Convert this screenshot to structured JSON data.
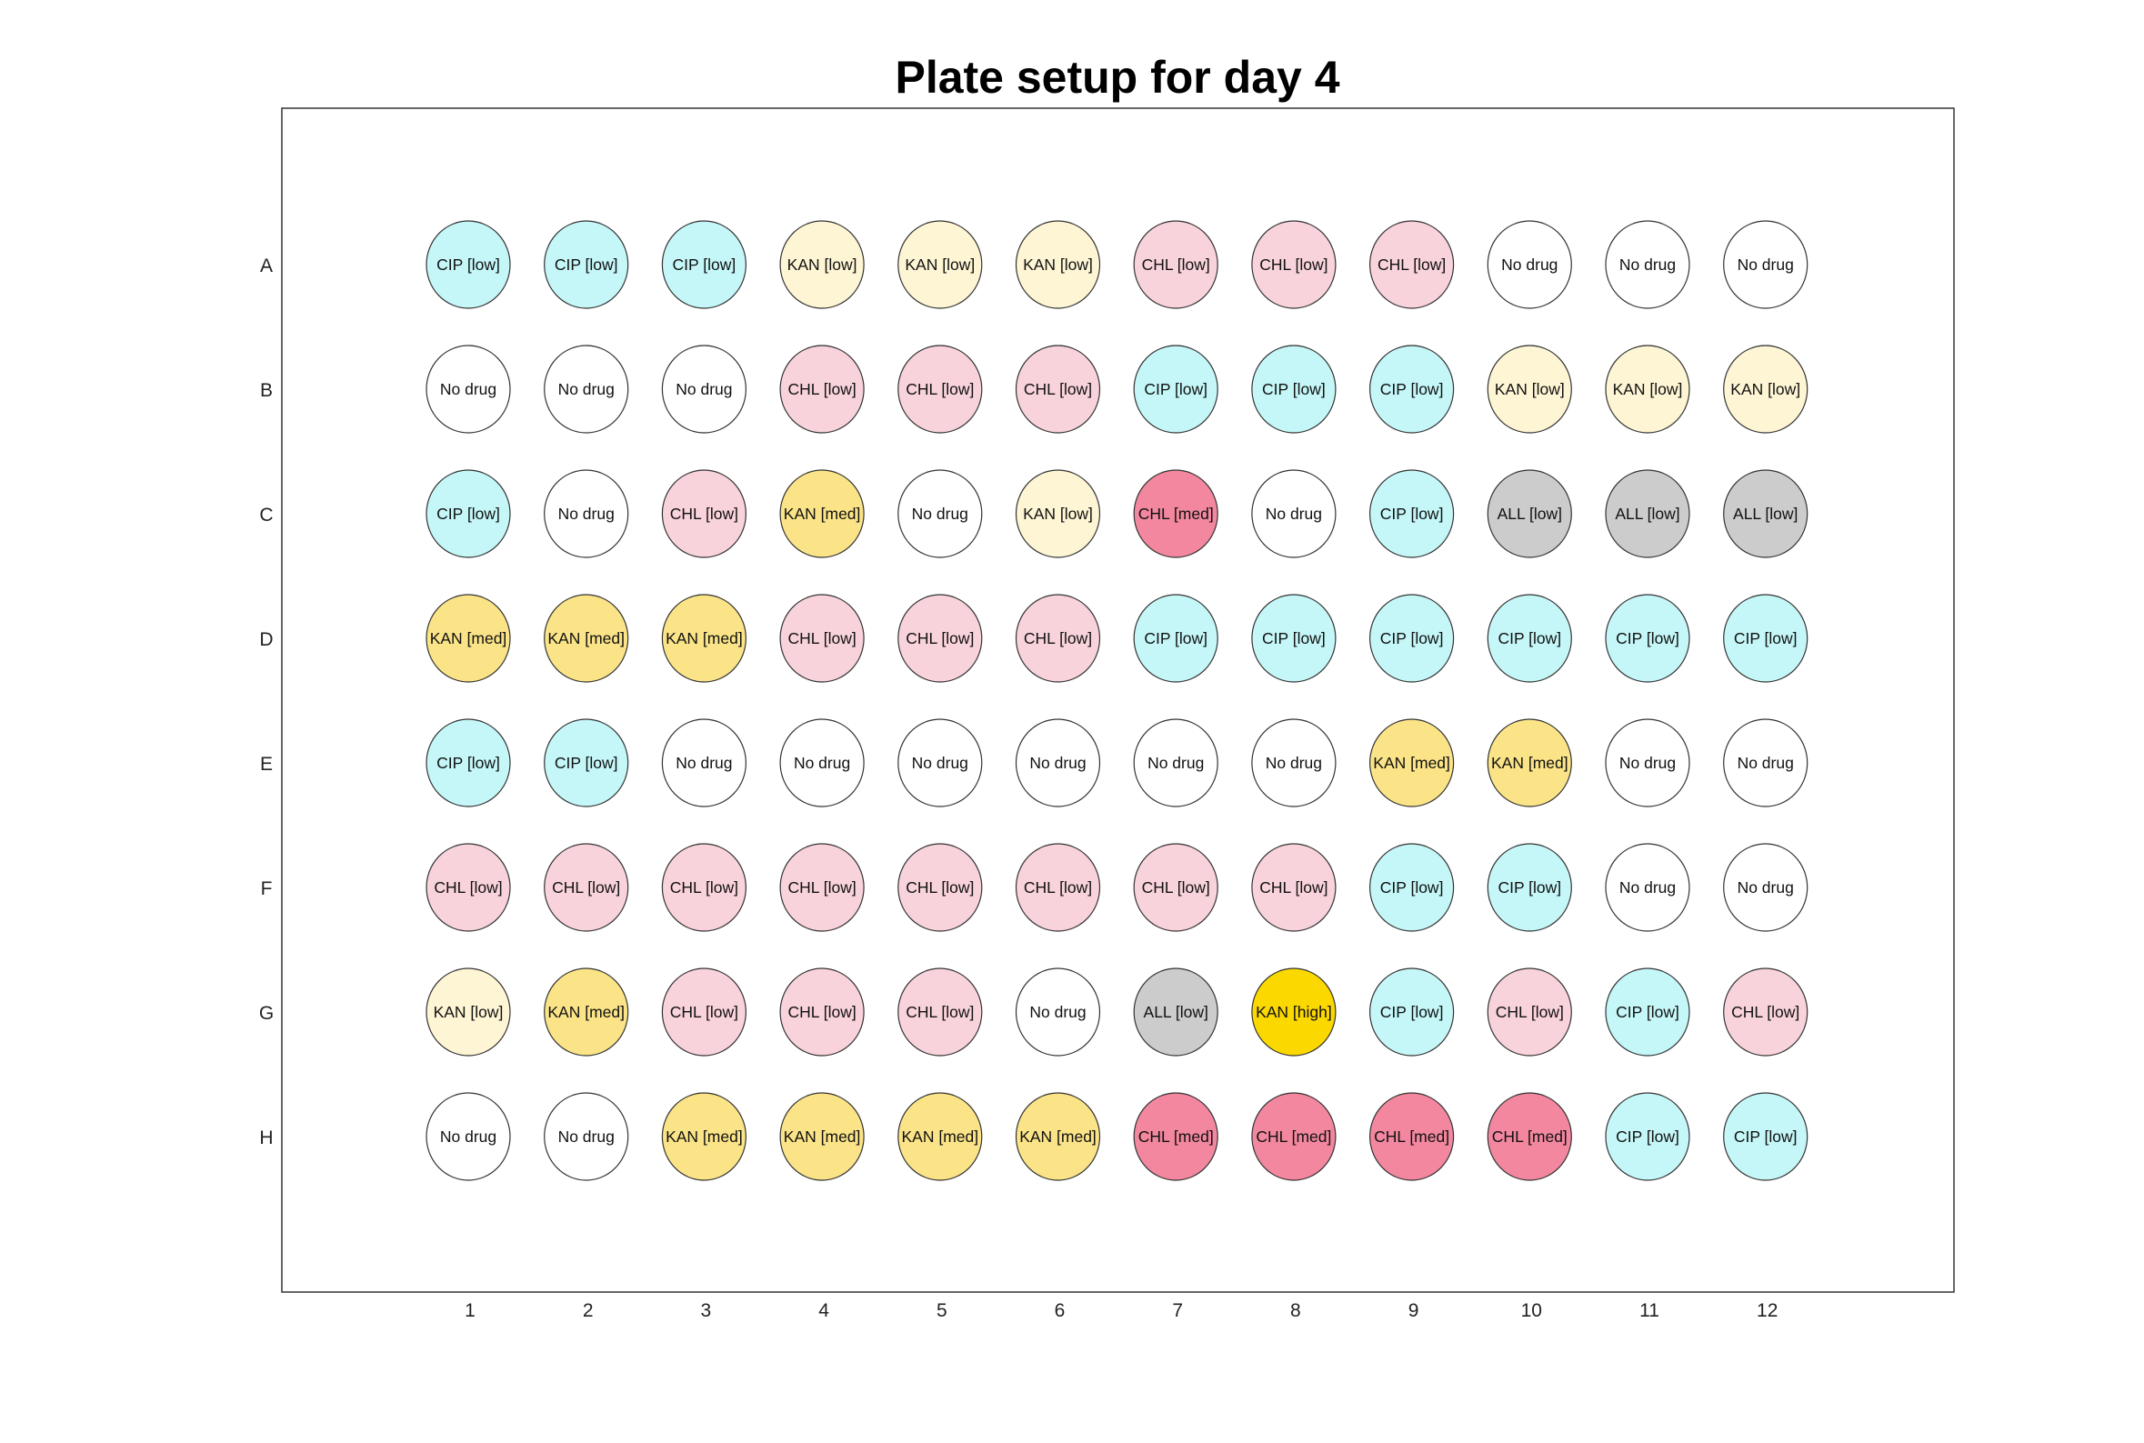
{
  "title": "Plate setup for day 4",
  "row_labels": [
    "A",
    "B",
    "C",
    "D",
    "E",
    "F",
    "G",
    "H"
  ],
  "column_labels": [
    "1",
    "2",
    "3",
    "4",
    "5",
    "6",
    "7",
    "8",
    "9",
    "10",
    "11",
    "12"
  ],
  "colors": {
    "No drug": "#ffffff",
    "CIP [low]": "#c5f7f8",
    "KAN [low]": "#fef5d4",
    "KAN [med]": "#fbe487",
    "KAN [high]": "#fbd800",
    "CHL [low]": "#f9d3db",
    "CHL [med]": "#f2879f",
    "ALL [low]": "#cccccc"
  },
  "wells": [
    [
      "CIP [low]",
      "CIP [low]",
      "CIP [low]",
      "KAN [low]",
      "KAN [low]",
      "KAN [low]",
      "CHL [low]",
      "CHL [low]",
      "CHL [low]",
      "No drug",
      "No drug",
      "No drug"
    ],
    [
      "No drug",
      "No drug",
      "No drug",
      "CHL [low]",
      "CHL [low]",
      "CHL [low]",
      "CIP [low]",
      "CIP [low]",
      "CIP [low]",
      "KAN [low]",
      "KAN [low]",
      "KAN [low]"
    ],
    [
      "CIP [low]",
      "No drug",
      "CHL [low]",
      "KAN [med]",
      "No drug",
      "KAN [low]",
      "CHL [med]",
      "No drug",
      "CIP [low]",
      "ALL [low]",
      "ALL [low]",
      "ALL [low]"
    ],
    [
      "KAN [med]",
      "KAN [med]",
      "KAN [med]",
      "CHL [low]",
      "CHL [low]",
      "CHL [low]",
      "CIP [low]",
      "CIP [low]",
      "CIP [low]",
      "CIP [low]",
      "CIP [low]",
      "CIP [low]"
    ],
    [
      "CIP [low]",
      "CIP [low]",
      "No drug",
      "No drug",
      "No drug",
      "No drug",
      "No drug",
      "No drug",
      "KAN [med]",
      "KAN [med]",
      "No drug",
      "No drug"
    ],
    [
      "CHL [low]",
      "CHL [low]",
      "CHL [low]",
      "CHL [low]",
      "CHL [low]",
      "CHL [low]",
      "CHL [low]",
      "CHL [low]",
      "CIP [low]",
      "CIP [low]",
      "No drug",
      "No drug"
    ],
    [
      "KAN [low]",
      "KAN [med]",
      "CHL [low]",
      "CHL [low]",
      "CHL [low]",
      "No drug",
      "ALL [low]",
      "KAN [high]",
      "CIP [low]",
      "CHL [low]",
      "CIP [low]",
      "CHL [low]"
    ],
    [
      "No drug",
      "No drug",
      "KAN [med]",
      "KAN [med]",
      "KAN [med]",
      "KAN [med]",
      "CHL [med]",
      "CHL [med]",
      "CHL [med]",
      "CHL [med]",
      "CIP [low]",
      "CIP [low]"
    ]
  ]
}
